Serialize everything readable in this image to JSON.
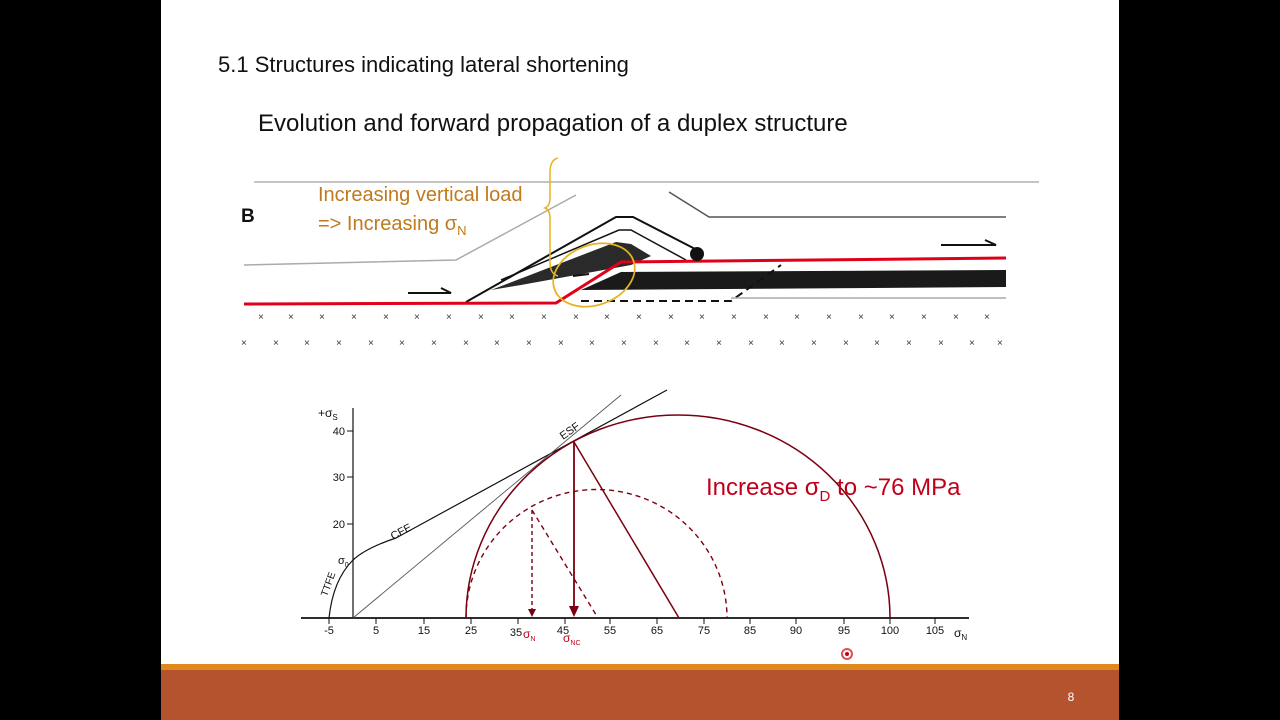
{
  "section_title": "5.1 Structures indicating lateral shortening",
  "slide_heading": "Evolution and forward propagation of a duplex structure",
  "panel_label": "B",
  "load_annotation": {
    "line1": "Increasing vertical load",
    "line2_prefix": "=> Increasing σ",
    "line2_sub": "N"
  },
  "increase_annotation": {
    "prefix": "Increase σ",
    "sub": "D",
    "suffix": " to ~76 MPa"
  },
  "mohr_diagram": {
    "y_axis_label": "+σ",
    "y_axis_label_sub": "S",
    "x_axis_label": "σ",
    "x_axis_label_sub": "N",
    "y_ticks": [
      "40",
      "30",
      "20"
    ],
    "x_ticks": [
      "-5",
      "5",
      "15",
      "25",
      "35",
      "45",
      "55",
      "65",
      "75",
      "85",
      "90",
      "95",
      "100",
      "105"
    ],
    "envelope_labels": {
      "esf": "ESF",
      "cfe": "CFE",
      "ttfe": "TTFE",
      "sigma0": "σ",
      "sigma0_sub": "0"
    },
    "marker_labels": {
      "sigma_n": "σ",
      "sigma_n_sub": "N",
      "sigma_nc": "σ",
      "sigma_nc_sub": "NC"
    },
    "colors": {
      "circle": "#7a0010",
      "annotation": "#c0001a",
      "load_text": "#c0791c",
      "fault_red": "#e0001a",
      "footer": "#b5532f",
      "footer_accent": "#e08a1e"
    }
  },
  "page_number": "8"
}
